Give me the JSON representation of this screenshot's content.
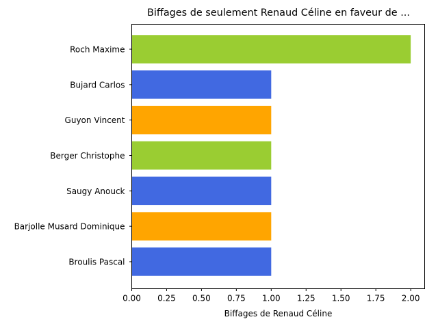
{
  "chart_data": {
    "type": "bar",
    "orientation": "horizontal",
    "title": "Biffages de seulement Renaud Céline en faveur de ...",
    "xlabel": "Biffages de Renaud Céline",
    "ylabel": "",
    "categories": [
      "Roch Maxime",
      "Bujard Carlos",
      "Guyon Vincent",
      "Berger Christophe",
      "Saugy Anouck",
      "Barjolle Musard Dominique",
      "Broulis Pascal"
    ],
    "values": [
      2,
      1,
      1,
      1,
      1,
      1,
      1
    ],
    "colors": [
      "#9acd32",
      "#4169e1",
      "#ffa500",
      "#9acd32",
      "#4169e1",
      "#ffa500",
      "#4169e1"
    ],
    "xlim": [
      0,
      2.1
    ],
    "xticks": [
      "0.00",
      "0.25",
      "0.50",
      "0.75",
      "1.00",
      "1.25",
      "1.50",
      "1.75",
      "2.00"
    ],
    "grid": false,
    "legend": "none"
  }
}
